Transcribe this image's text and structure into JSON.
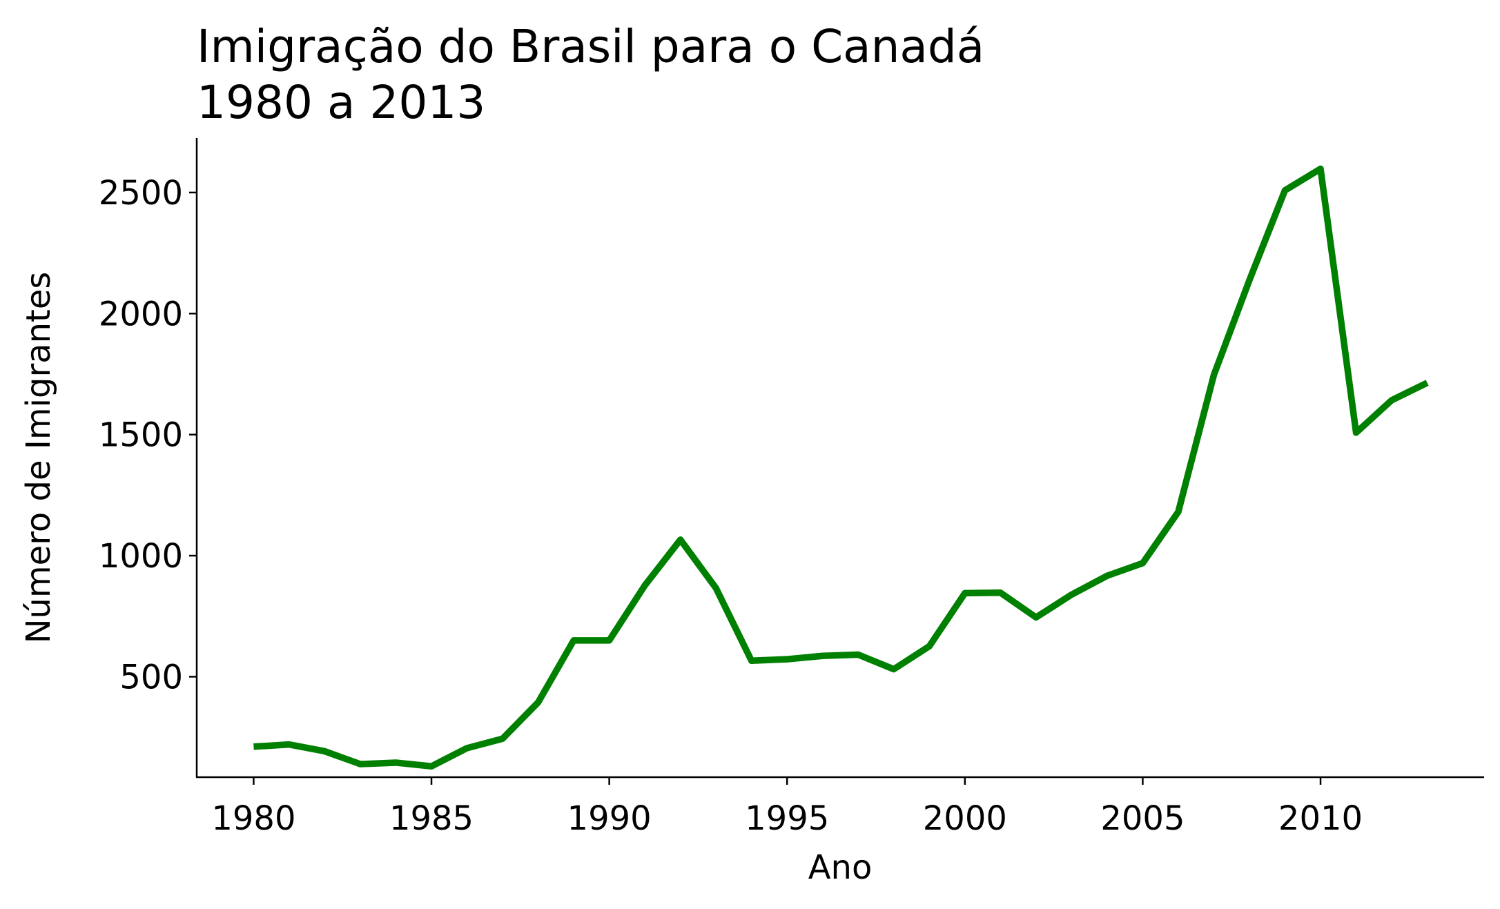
{
  "chart_data": {
    "type": "line",
    "title_line1": "Imigração do Brasil para o Canadá",
    "title_line2": "1980 a 2013",
    "xlabel": "Ano",
    "ylabel": "Número de Imigrantes",
    "xlim": [
      1978.4,
      2014.6
    ],
    "ylim": [
      85,
      2725
    ],
    "x_ticks": [
      1980,
      1985,
      1990,
      1995,
      2000,
      2005,
      2010
    ],
    "y_ticks": [
      500,
      1000,
      1500,
      2000,
      2500
    ],
    "grid": false,
    "legend": "none",
    "line_color": "#008000",
    "series": [
      {
        "x": [
          1980,
          1981,
          1982,
          1983,
          1984,
          1985,
          1986,
          1987,
          1988,
          1989,
          1990,
          1991,
          1992,
          1993,
          1994,
          1995,
          1996,
          1997,
          1998,
          1999,
          2000,
          2001,
          2002,
          2003,
          2004,
          2005,
          2006,
          2007,
          2008,
          2009,
          2010,
          2011,
          2012,
          2013
        ],
        "values": [
          211,
          220,
          192,
          139,
          145,
          130,
          205,
          244,
          394,
          650,
          650,
          877,
          1066,
          866,
          566,
          572,
          586,
          591,
          531,
          626,
          845,
          847,
          745,
          839,
          917,
          969,
          1181,
          1746,
          2138,
          2509,
          2598,
          1508,
          1642,
          1714
        ]
      }
    ]
  }
}
